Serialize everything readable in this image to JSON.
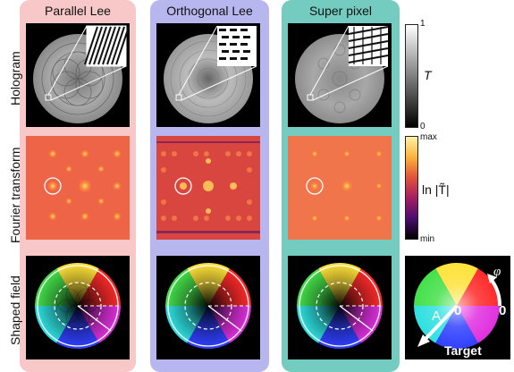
{
  "columns": [
    {
      "title": "Parallel Lee",
      "bg": "#f7c8c7"
    },
    {
      "title": "Orthogonal Lee",
      "bg": "#b8b6ef"
    },
    {
      "title": "Super pixel",
      "bg": "#74cbc0"
    }
  ],
  "rows": [
    {
      "label": "Hologram"
    },
    {
      "label": "Fourier transform"
    },
    {
      "label": "Shaped field"
    }
  ],
  "colorbars": {
    "hologram": {
      "top": "1",
      "bottom": "0",
      "name": "T"
    },
    "fourier": {
      "top": "max",
      "bottom": "min",
      "name": "ln |T̃|"
    }
  },
  "target": {
    "label": "Target",
    "amplitude_symbol": "A",
    "phase_symbol": "φ",
    "zero_a": "0",
    "zero_phi": "0"
  }
}
